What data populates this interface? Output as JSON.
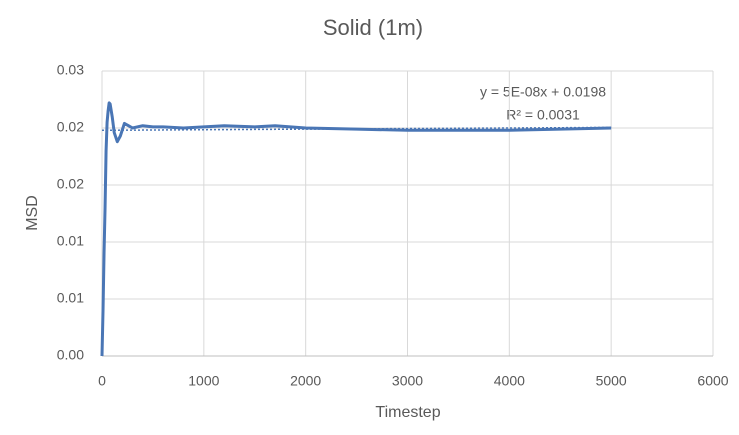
{
  "chart_data": {
    "type": "line",
    "title": "Solid (1m)",
    "x_label": "Timestep",
    "y_label": "MSD",
    "x": [
      0,
      10,
      20,
      30,
      40,
      50,
      60,
      70,
      80,
      100,
      120,
      150,
      180,
      220,
      260,
      300,
      400,
      500,
      600,
      800,
      1000,
      1200,
      1500,
      1700,
      2000,
      2500,
      3000,
      3500,
      4000,
      4500,
      5000
    ],
    "series": [
      {
        "name": "MSD",
        "color": "#4a76b5",
        "values": [
          0,
          0.004,
          0.009,
          0.013,
          0.018,
          0.0205,
          0.0215,
          0.0222,
          0.0221,
          0.021,
          0.0196,
          0.0188,
          0.0193,
          0.0204,
          0.0202,
          0.02,
          0.0202,
          0.0201,
          0.0201,
          0.02,
          0.0201,
          0.0202,
          0.0201,
          0.0202,
          0.02,
          0.0199,
          0.0198,
          0.0198,
          0.0198,
          0.0199,
          0.02
        ]
      }
    ],
    "trendline": {
      "x": [
        0,
        5000
      ],
      "values": [
        0.0198,
        0.02005
      ],
      "color": "#4a76b5",
      "equation": "y = 5E-08x + 0.0198",
      "r_squared": "R² = 0.0031"
    },
    "xlim": [
      0,
      6000
    ],
    "xticks": [
      0,
      1000,
      2000,
      3000,
      4000,
      5000,
      6000
    ],
    "ylim": [
      0,
      0.025
    ],
    "yticks": [
      {
        "value": 0,
        "label": "0.00"
      },
      {
        "value": 0.005,
        "label": "0.01"
      },
      {
        "value": 0.01,
        "label": "0.01"
      },
      {
        "value": 0.015,
        "label": "0.02"
      },
      {
        "value": 0.02,
        "label": "0.02"
      },
      {
        "value": 0.025,
        "label": "0.03"
      }
    ],
    "grid": true
  }
}
